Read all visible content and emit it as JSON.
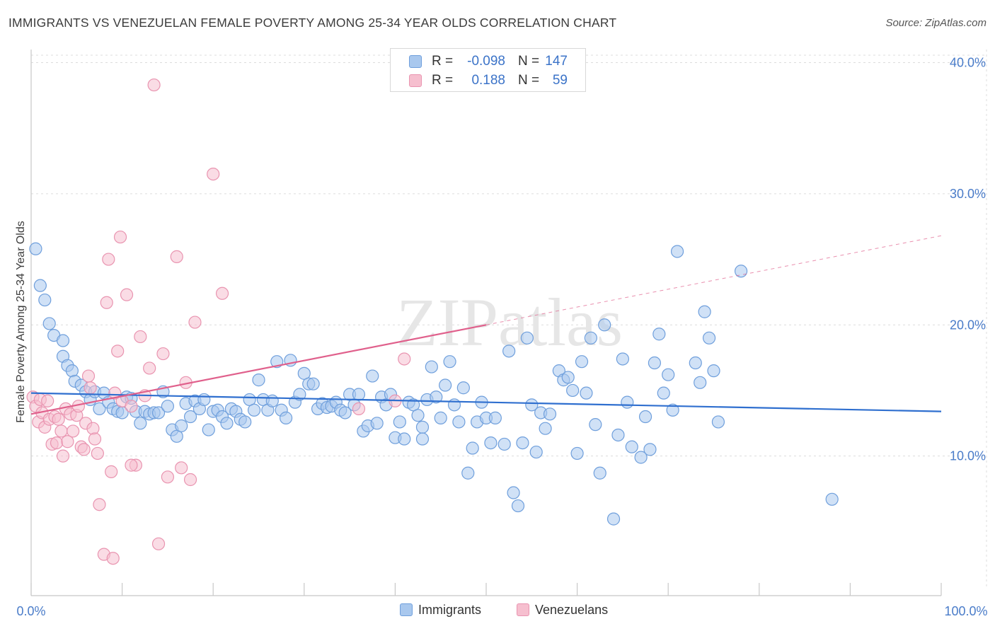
{
  "title": "IMMIGRANTS VS VENEZUELAN FEMALE POVERTY AMONG 25-34 YEAR OLDS CORRELATION CHART",
  "source": "Source: ZipAtlas.com",
  "watermark": "ZIPatlas",
  "colors": {
    "immigrants_fill": "#a9c8ee",
    "immigrants_stroke": "#6f9fdc",
    "immigrants_line": "#2f6fcf",
    "venezuelans_fill": "#f6bfcf",
    "venezuelans_stroke": "#e994b0",
    "venezuelans_line": "#e0608c",
    "tick_text": "#4a7cc9",
    "grid": "#dcdcdc"
  },
  "legend": {
    "rows": [
      {
        "r_label": "R =",
        "r_value": "-0.098",
        "n_label": "N =",
        "n_value": "147"
      },
      {
        "r_label": "R =",
        "r_value": "0.188",
        "n_label": "N =",
        "n_value": "59"
      }
    ],
    "bottom": [
      "Immigrants",
      "Venezuelans"
    ]
  },
  "chart_data": {
    "type": "scatter",
    "title": "IMMIGRANTS VS VENEZUELAN FEMALE POVERTY AMONG 25-34 YEAR OLDS CORRELATION CHART",
    "xlabel": "",
    "ylabel": "Female Poverty Among 25-34 Year Olds",
    "x_tick_labels": [
      "0.0%",
      "100.0%"
    ],
    "y_tick_labels": [
      "10.0%",
      "20.0%",
      "30.0%",
      "40.0%"
    ],
    "xlim": [
      0,
      100
    ],
    "ylim": [
      0,
      41
    ],
    "y_ticks": [
      10,
      20,
      30,
      40
    ],
    "grid": true,
    "legend_position": "top-center",
    "series": [
      {
        "name": "Immigrants",
        "trend": {
          "x": [
            0,
            100
          ],
          "y": [
            14.8,
            13.4
          ],
          "dashed_from": null
        },
        "points": [
          [
            0.5,
            25.8
          ],
          [
            1,
            23
          ],
          [
            1.5,
            21.9
          ],
          [
            2,
            20.1
          ],
          [
            2.5,
            19.2
          ],
          [
            3.5,
            18.8
          ],
          [
            3.5,
            17.6
          ],
          [
            4,
            16.9
          ],
          [
            4.5,
            16.5
          ],
          [
            4.8,
            15.7
          ],
          [
            5.5,
            15.4
          ],
          [
            6,
            14.9
          ],
          [
            6.5,
            14.3
          ],
          [
            7,
            14.9
          ],
          [
            7.5,
            13.6
          ],
          [
            8,
            14.8
          ],
          [
            8.5,
            14.1
          ],
          [
            9,
            13.6
          ],
          [
            9.5,
            13.4
          ],
          [
            10,
            13.3
          ],
          [
            10.5,
            14.5
          ],
          [
            11,
            14.4
          ],
          [
            11.5,
            13.4
          ],
          [
            12,
            12.5
          ],
          [
            12.5,
            13.4
          ],
          [
            13,
            13.2
          ],
          [
            13.5,
            13.3
          ],
          [
            14,
            13.3
          ],
          [
            14.5,
            14.9
          ],
          [
            15,
            13.8
          ],
          [
            15.5,
            12
          ],
          [
            16,
            11.5
          ],
          [
            16.5,
            12.3
          ],
          [
            17,
            14.0
          ],
          [
            17.5,
            13
          ],
          [
            18,
            14.2
          ],
          [
            18.5,
            13.6
          ],
          [
            19,
            14.3
          ],
          [
            19.5,
            12
          ],
          [
            20,
            13.4
          ],
          [
            20.5,
            13.5
          ],
          [
            21,
            13
          ],
          [
            21.5,
            12.5
          ],
          [
            22,
            13.6
          ],
          [
            22.5,
            13.4
          ],
          [
            23,
            12.8
          ],
          [
            23.5,
            12.6
          ],
          [
            24,
            14.3
          ],
          [
            24.5,
            13.5
          ],
          [
            25,
            15.8
          ],
          [
            25.5,
            14.3
          ],
          [
            26,
            13.5
          ],
          [
            26.5,
            14.2
          ],
          [
            27,
            17.2
          ],
          [
            27.5,
            13.5
          ],
          [
            28,
            12.9
          ],
          [
            28.5,
            17.3
          ],
          [
            29,
            14.1
          ],
          [
            29.5,
            14.7
          ],
          [
            30,
            16.3
          ],
          [
            30.5,
            15.5
          ],
          [
            31,
            15.5
          ],
          [
            31.5,
            13.6
          ],
          [
            32,
            14.0
          ],
          [
            32.5,
            13.7
          ],
          [
            33,
            13.8
          ],
          [
            33.5,
            14.1
          ],
          [
            34,
            13.5
          ],
          [
            34.5,
            13.3
          ],
          [
            35,
            14.7
          ],
          [
            35.5,
            13.9
          ],
          [
            36,
            14.7
          ],
          [
            36.5,
            11.9
          ],
          [
            37,
            12.3
          ],
          [
            37.5,
            16.1
          ],
          [
            38,
            12.5
          ],
          [
            38.5,
            14.5
          ],
          [
            39,
            13.9
          ],
          [
            39.5,
            14.7
          ],
          [
            40,
            11.4
          ],
          [
            40.5,
            12.6
          ],
          [
            41,
            11.3
          ],
          [
            41.5,
            14.1
          ],
          [
            42,
            13.9
          ],
          [
            42.5,
            13.1
          ],
          [
            43,
            12.2
          ],
          [
            43.5,
            14.3
          ],
          [
            44,
            16.8
          ],
          [
            44.5,
            14.5
          ],
          [
            45,
            12.9
          ],
          [
            45.5,
            15.4
          ],
          [
            46,
            17.2
          ],
          [
            46.5,
            13.9
          ],
          [
            47,
            12.6
          ],
          [
            47.5,
            15.2
          ],
          [
            48,
            8.7
          ],
          [
            48.5,
            10.6
          ],
          [
            49,
            12.6
          ],
          [
            49.5,
            14.1
          ],
          [
            50,
            12.9
          ],
          [
            50.5,
            11
          ],
          [
            51,
            12.9
          ],
          [
            52,
            10.9
          ],
          [
            52.5,
            18
          ],
          [
            53,
            7.2
          ],
          [
            53.5,
            6.2
          ],
          [
            54,
            11
          ],
          [
            54.5,
            19
          ],
          [
            55,
            13.9
          ],
          [
            55.5,
            10.3
          ],
          [
            56,
            13.3
          ],
          [
            56.5,
            12.1
          ],
          [
            57,
            13.2
          ],
          [
            58,
            16.5
          ],
          [
            58.5,
            15.8
          ],
          [
            59,
            16
          ],
          [
            59.5,
            15
          ],
          [
            60,
            10.2
          ],
          [
            60.5,
            17.2
          ],
          [
            61,
            14.8
          ],
          [
            61.5,
            19
          ],
          [
            62,
            12.4
          ],
          [
            62.5,
            8.7
          ],
          [
            63,
            20
          ],
          [
            64,
            5.2
          ],
          [
            64.5,
            11.6
          ],
          [
            65,
            17.4
          ],
          [
            65.5,
            14.1
          ],
          [
            66,
            10.7
          ],
          [
            67,
            9.9
          ],
          [
            67.5,
            13
          ],
          [
            68,
            10.5
          ],
          [
            68.5,
            17.1
          ],
          [
            69,
            19.3
          ],
          [
            69.5,
            14.8
          ],
          [
            70,
            16.2
          ],
          [
            70.5,
            13.5
          ],
          [
            71,
            25.6
          ],
          [
            73,
            17.1
          ],
          [
            73.5,
            15.6
          ],
          [
            74,
            21
          ],
          [
            74.5,
            19
          ],
          [
            75,
            16.5
          ],
          [
            75.5,
            12.6
          ],
          [
            78,
            24.1
          ],
          [
            88,
            6.7
          ],
          [
            43,
            11.3
          ]
        ]
      },
      {
        "name": "Venezuelans",
        "trend": {
          "x": [
            0,
            100
          ],
          "y": [
            13.2,
            26.8
          ],
          "dashed_from": 50
        },
        "points": [
          [
            0.2,
            14.5
          ],
          [
            0.5,
            13.8
          ],
          [
            0.8,
            12.6
          ],
          [
            1,
            14.3
          ],
          [
            1.2,
            13.3
          ],
          [
            1.5,
            12.2
          ],
          [
            1.8,
            14.2
          ],
          [
            2,
            12.8
          ],
          [
            2.3,
            10.9
          ],
          [
            2.6,
            13
          ],
          [
            2.8,
            11
          ],
          [
            3,
            12.8
          ],
          [
            3.3,
            11.9
          ],
          [
            3.5,
            10
          ],
          [
            3.8,
            13.6
          ],
          [
            4,
            11.1
          ],
          [
            4.3,
            13.2
          ],
          [
            4.6,
            11.9
          ],
          [
            5,
            13.1
          ],
          [
            5.2,
            13.8
          ],
          [
            5.5,
            10.7
          ],
          [
            5.8,
            10.5
          ],
          [
            6,
            12.5
          ],
          [
            6.3,
            16.1
          ],
          [
            6.5,
            15.2
          ],
          [
            6.8,
            12.1
          ],
          [
            7,
            11.3
          ],
          [
            7.3,
            10.2
          ],
          [
            7.5,
            6.3
          ],
          [
            8,
            2.5
          ],
          [
            8.3,
            21.7
          ],
          [
            8.5,
            25
          ],
          [
            8.8,
            8.8
          ],
          [
            9,
            2.2
          ],
          [
            9.2,
            14.8
          ],
          [
            9.5,
            18
          ],
          [
            9.8,
            26.7
          ],
          [
            10,
            14.2
          ],
          [
            10.5,
            22.3
          ],
          [
            11,
            13.8
          ],
          [
            11.5,
            9.3
          ],
          [
            12,
            19.1
          ],
          [
            12.5,
            14.6
          ],
          [
            13,
            16.7
          ],
          [
            13.5,
            38.3
          ],
          [
            14,
            3.3
          ],
          [
            14.5,
            17.8
          ],
          [
            15,
            8.4
          ],
          [
            16,
            25.2
          ],
          [
            16.5,
            9.1
          ],
          [
            17,
            15.6
          ],
          [
            17.5,
            8.2
          ],
          [
            18,
            20.2
          ],
          [
            20,
            31.5
          ],
          [
            21,
            22.4
          ],
          [
            36,
            13.6
          ],
          [
            40,
            14.2
          ],
          [
            41,
            17.4
          ],
          [
            11,
            9.3
          ]
        ]
      }
    ]
  }
}
